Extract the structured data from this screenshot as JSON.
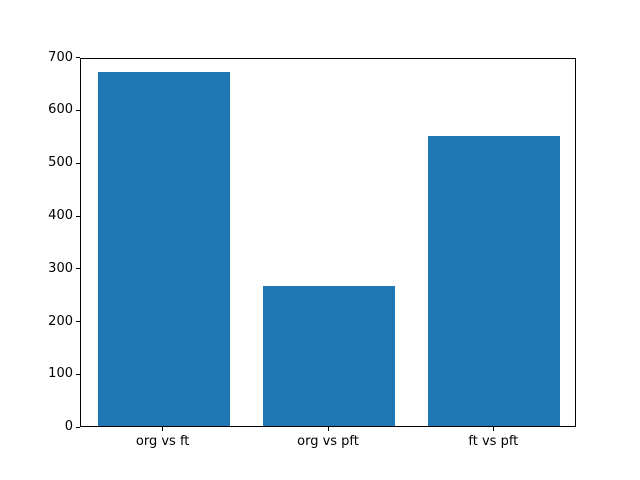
{
  "chart_data": {
    "type": "bar",
    "title": "",
    "xlabel": "",
    "ylabel": "",
    "categories": [
      "org vs ft",
      "org vs pft",
      "ft vs pft"
    ],
    "values": [
      670,
      265,
      550
    ],
    "ylim": [
      0,
      700
    ],
    "yticks": [
      0,
      100,
      200,
      300,
      400,
      500,
      600,
      700
    ],
    "grid": false,
    "legend": "none",
    "bar_color": "#1f77b4",
    "spine_color": "#000000",
    "background_color": "#ffffff",
    "bar_width_fraction": 0.8
  }
}
